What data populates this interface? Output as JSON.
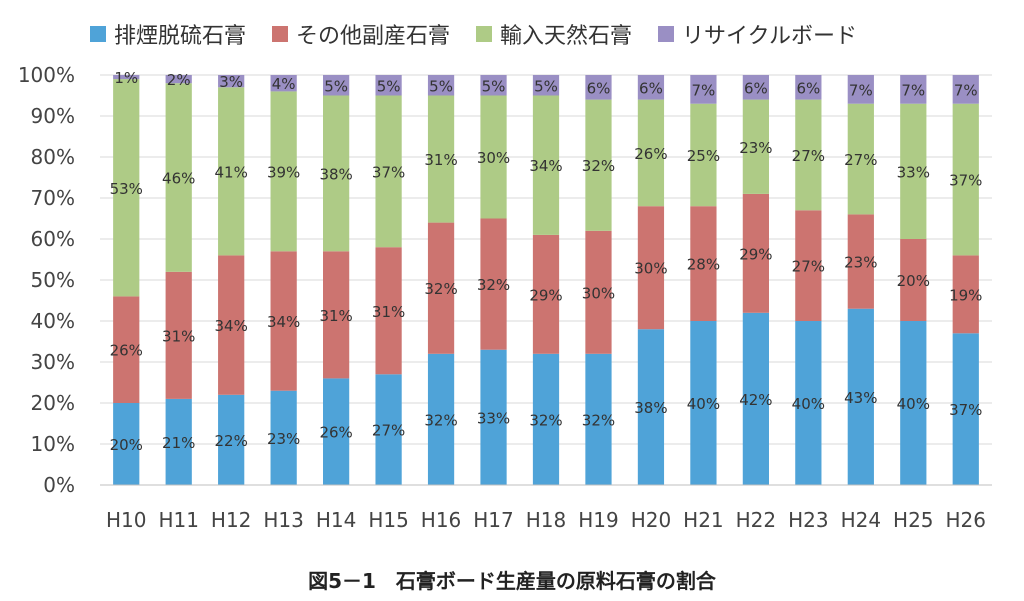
{
  "chart_data": {
    "type": "bar",
    "stacked": true,
    "percent": true,
    "categories": [
      "H10",
      "H11",
      "H12",
      "H13",
      "H14",
      "H15",
      "H16",
      "H17",
      "H18",
      "H19",
      "H20",
      "H21",
      "H22",
      "H23",
      "H24",
      "H25",
      "H26"
    ],
    "series": [
      {
        "name": "排煙脱硫石膏",
        "color": "#4FA3D8",
        "values": [
          20,
          21,
          22,
          23,
          26,
          27,
          32,
          33,
          32,
          32,
          38,
          40,
          42,
          40,
          43,
          40,
          37
        ]
      },
      {
        "name": "その他副産石膏",
        "color": "#CC7470",
        "values": [
          26,
          31,
          34,
          34,
          31,
          31,
          32,
          32,
          29,
          30,
          30,
          28,
          29,
          27,
          23,
          20,
          19
        ]
      },
      {
        "name": "輸入天然石膏",
        "color": "#AECB86",
        "values": [
          53,
          46,
          41,
          39,
          38,
          37,
          31,
          30,
          34,
          32,
          26,
          25,
          23,
          27,
          27,
          33,
          37
        ]
      },
      {
        "name": "リサイクルボード",
        "color": "#9A8FC4",
        "values": [
          1,
          2,
          3,
          4,
          5,
          5,
          5,
          5,
          5,
          6,
          6,
          7,
          6,
          6,
          7,
          7,
          7
        ]
      }
    ],
    "ylim": [
      0,
      100
    ],
    "yticks": [
      "0%",
      "10%",
      "20%",
      "30%",
      "40%",
      "50%",
      "60%",
      "70%",
      "80%",
      "90%",
      "100%"
    ],
    "grid": true,
    "legend_position": "top",
    "caption": "図5－1　石膏ボード生産量の原料石膏の割合"
  }
}
